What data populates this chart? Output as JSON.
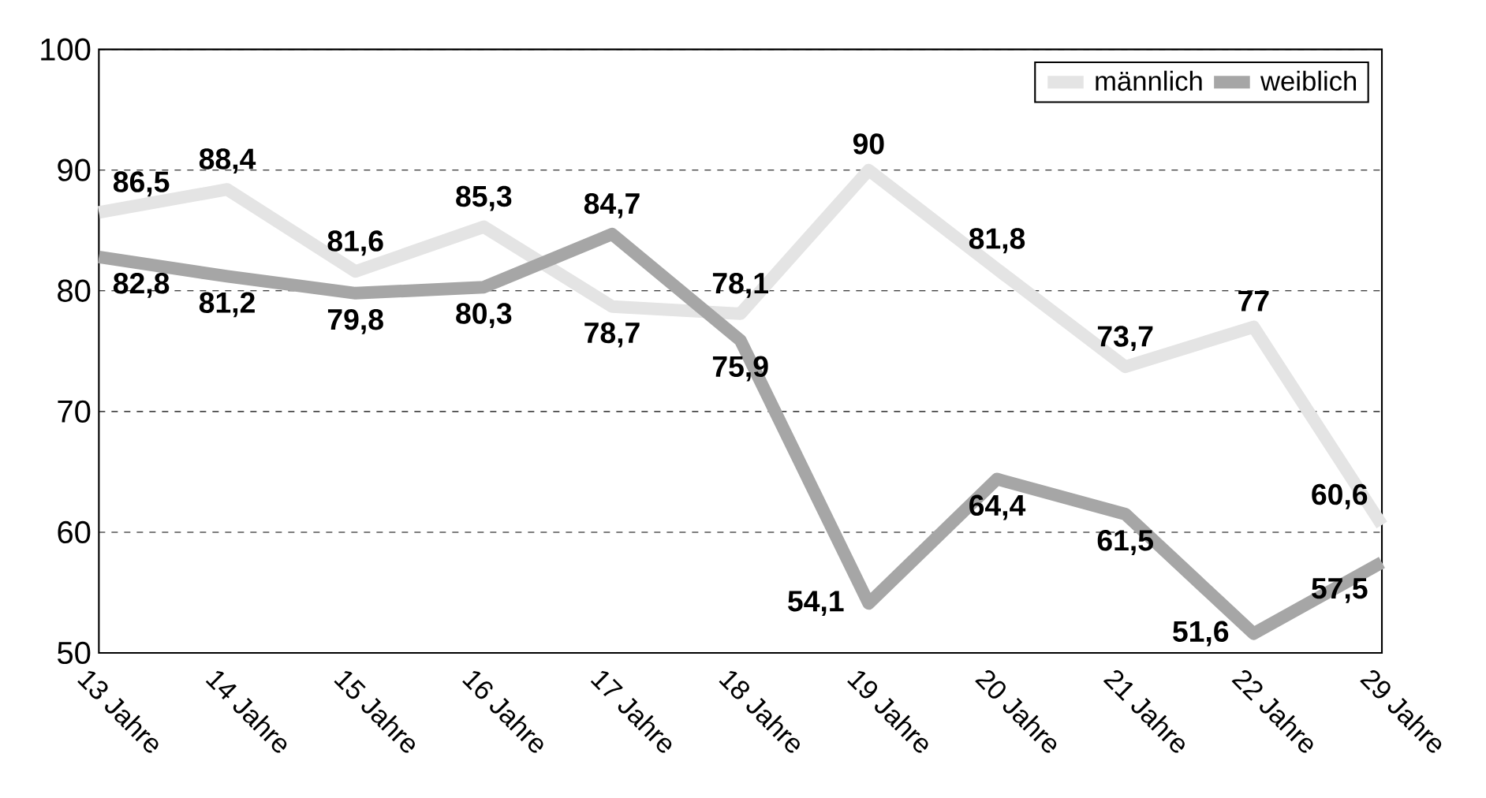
{
  "chart_data": {
    "type": "line",
    "categories": [
      "13 Jahre",
      "14 Jahre",
      "15 Jahre",
      "16 Jahre",
      "17 Jahre",
      "18 Jahre",
      "19 Jahre",
      "20 Jahre",
      "21 Jahre",
      "22 Jahre",
      "29 Jahre"
    ],
    "series": [
      {
        "name": "männlich",
        "color": "#e4e4e4",
        "values": [
          86.5,
          88.4,
          81.6,
          85.3,
          78.7,
          78.1,
          90,
          81.8,
          73.7,
          77,
          60.6
        ],
        "value_labels": [
          "86,5",
          "88,4",
          "81,6",
          "85,3",
          "78,7",
          "78,1",
          "90",
          "81,8",
          "73,7",
          "77",
          "60,6"
        ]
      },
      {
        "name": "weiblich",
        "color": "#a6a6a6",
        "values": [
          82.8,
          81.2,
          79.8,
          80.3,
          84.7,
          75.9,
          54.1,
          64.4,
          61.5,
          51.6,
          57.5
        ],
        "value_labels": [
          "82,8",
          "81,2",
          "79,8",
          "80,3",
          "84,7",
          "75,9",
          "54,1",
          "64,4",
          "61,5",
          "51,6",
          "57,5"
        ]
      }
    ],
    "ylim": [
      50,
      100
    ],
    "yticks": [
      50,
      60,
      70,
      80,
      90,
      100
    ],
    "grid": "y",
    "legend": "top right",
    "marker": "none",
    "line_style": "solid"
  }
}
